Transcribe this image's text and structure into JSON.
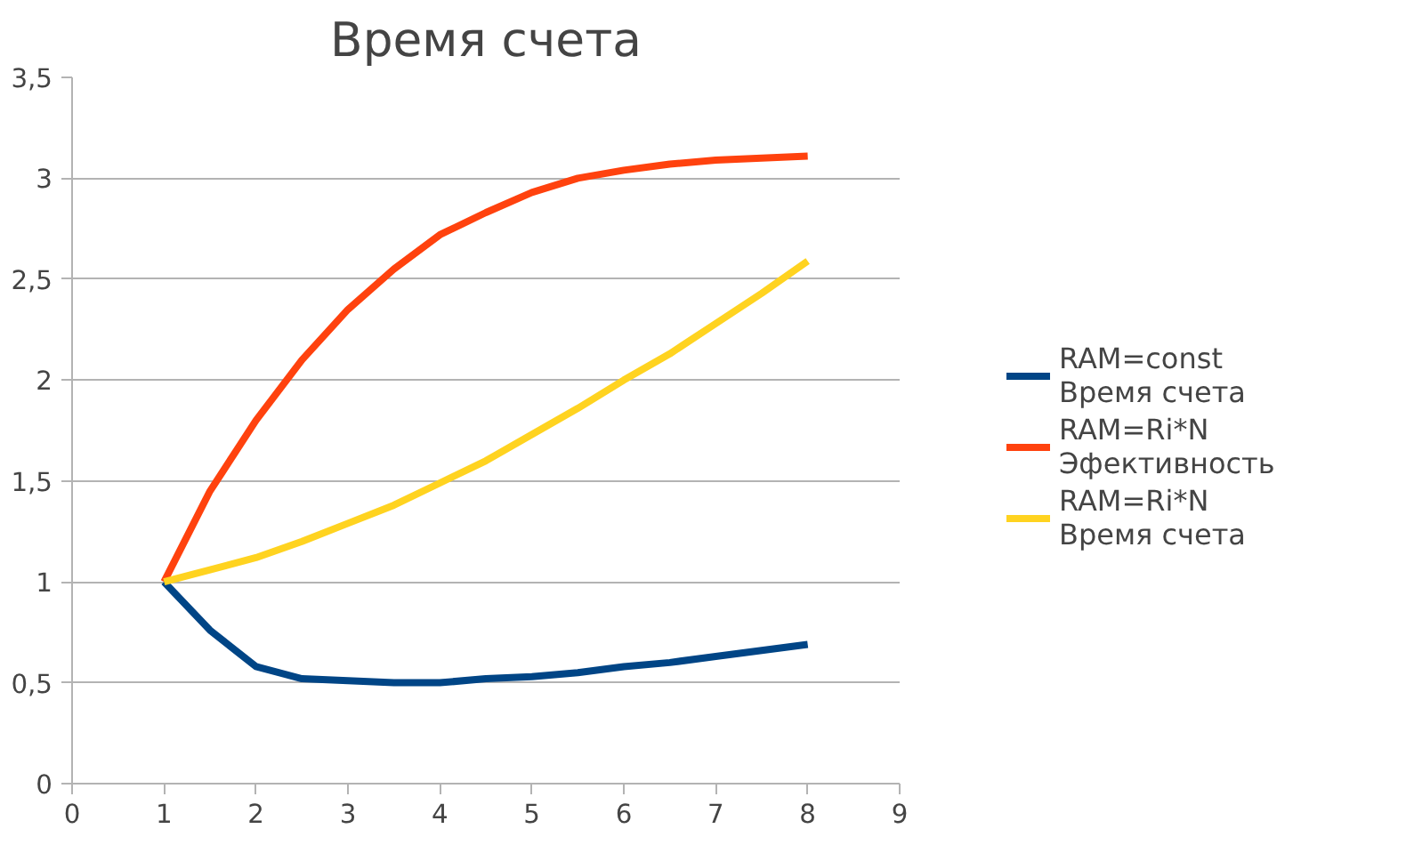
{
  "chart_data": {
    "type": "line",
    "title": "Время счета",
    "x": [
      1,
      1.5,
      2,
      2.5,
      3,
      3.5,
      4,
      4.5,
      5,
      5.5,
      6,
      6.5,
      7,
      7.5,
      8
    ],
    "series": [
      {
        "name": "RAM=const\nВремя счета",
        "color": "#004586",
        "values": [
          1,
          0.76,
          0.58,
          0.52,
          0.51,
          0.5,
          0.5,
          0.52,
          0.53,
          0.55,
          0.58,
          0.6,
          0.63,
          0.66,
          0.69
        ]
      },
      {
        "name": "RAM=Ri*N\nЭфективность",
        "color": "#ff420e",
        "values": [
          1,
          1.45,
          1.8,
          2.1,
          2.35,
          2.55,
          2.72,
          2.83,
          2.93,
          3.0,
          3.04,
          3.07,
          3.09,
          3.1,
          3.11
        ]
      },
      {
        "name": "RAM=Ri*N\nВремя счета",
        "color": "#ffd320",
        "values": [
          1,
          1.06,
          1.12,
          1.2,
          1.29,
          1.38,
          1.49,
          1.6,
          1.73,
          1.86,
          2.0,
          2.13,
          2.28,
          2.43,
          2.59
        ]
      }
    ],
    "xlim": [
      0,
      9
    ],
    "xticks": [
      0,
      1,
      2,
      3,
      4,
      5,
      6,
      7,
      8,
      9
    ],
    "ylim": [
      0,
      3.5
    ],
    "yticks": [
      0,
      {
        "value": 0.5,
        "label": "0,5"
      },
      1,
      {
        "value": 1.5,
        "label": "1,5"
      },
      2,
      {
        "value": 2.5,
        "label": "2,5"
      },
      3,
      {
        "value": 3.5,
        "label": "3,5"
      }
    ],
    "grid": "y",
    "legend": "right",
    "marker": "none",
    "line_style": "solid"
  }
}
